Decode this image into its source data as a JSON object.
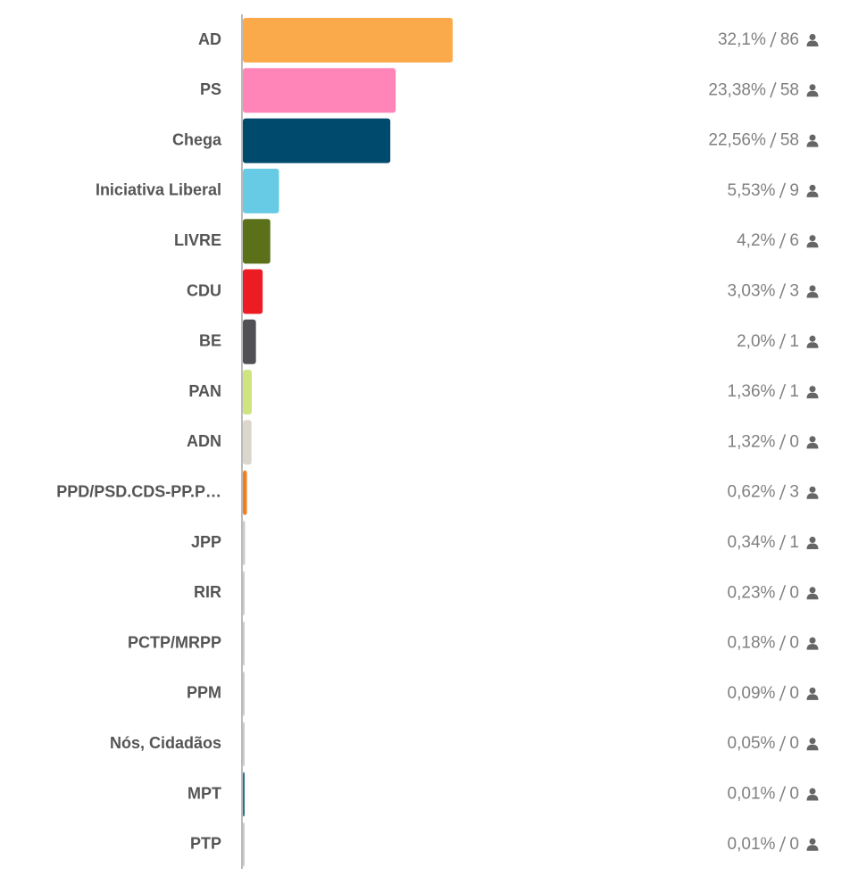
{
  "chart_data": {
    "type": "bar",
    "orientation": "horizontal",
    "categories": [
      "AD",
      "PS",
      "Chega",
      "Iniciativa Liberal",
      "LIVRE",
      "CDU",
      "BE",
      "PAN",
      "ADN",
      "PPD/PSD.CDS-PP.P…",
      "JPP",
      "RIR",
      "PCTP/MRPP",
      "PPM",
      "Nós, Cidadãos",
      "MPT",
      "PTP"
    ],
    "values": [
      32.1,
      23.38,
      22.56,
      5.53,
      4.2,
      3.03,
      2.0,
      1.36,
      1.32,
      0.62,
      0.34,
      0.23,
      0.18,
      0.09,
      0.05,
      0.01,
      0.01
    ],
    "value_labels": [
      "32,1%",
      "23,38%",
      "22,56%",
      "5,53%",
      "4,2%",
      "3,03%",
      "2,0%",
      "1,36%",
      "1,32%",
      "0,62%",
      "0,34%",
      "0,23%",
      "0,18%",
      "0,09%",
      "0,05%",
      "0,01%",
      "0,01%"
    ],
    "seats": [
      86,
      58,
      58,
      9,
      6,
      3,
      1,
      1,
      0,
      3,
      1,
      0,
      0,
      0,
      0,
      0,
      0
    ],
    "colors": [
      "#fbaa4b",
      "#ff85b8",
      "#004a6e",
      "#67cbe6",
      "#5b7119",
      "#ec1c24",
      "#505055",
      "#cfe37f",
      "#dcd6cd",
      "#f07f22",
      "#cccccc",
      "#cccccc",
      "#cccccc",
      "#cccccc",
      "#cccccc",
      "#2b6f8a",
      "#cccccc"
    ]
  }
}
